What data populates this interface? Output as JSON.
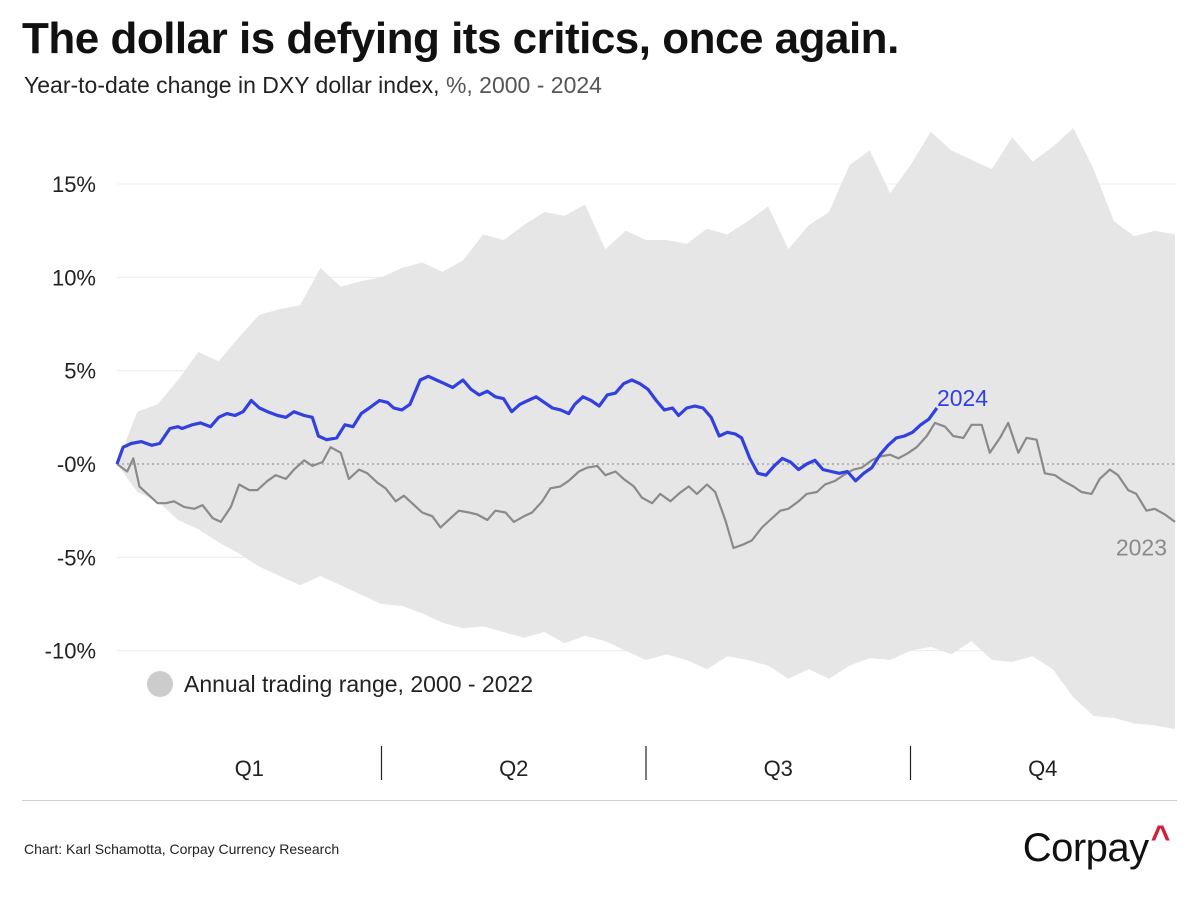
{
  "header": {
    "title": "The dollar is defying its critics, once again.",
    "subtitle_main": "Year-to-date change in DXY dollar index, ",
    "subtitle_unit": "%, 2000 - 2024"
  },
  "footer": {
    "source": "Chart: Karl Schamotta, Corpay Currency Research",
    "brand": "Corpay",
    "brand_mark": "^"
  },
  "colors": {
    "range_fill": "#e6e6e6",
    "series_2024": "#3340e0",
    "series_2023": "#8a8a8a",
    "legend_dot": "#cccccc"
  },
  "chart_data": {
    "type": "line",
    "title": "The dollar is defying its critics, once again.",
    "ylabel": "Year-to-date change in DXY dollar index, %",
    "ylim": [
      -14.2,
      18.5
    ],
    "xlim": [
      0,
      52
    ],
    "x_unit": "week of year",
    "yticks": [
      15,
      10,
      5,
      0,
      -5,
      -10
    ],
    "ytick_labels": [
      "15%",
      "10%",
      "5%",
      "-0%",
      "-5%",
      "-10%"
    ],
    "quarters": [
      "Q1",
      "Q2",
      "Q3",
      "Q4"
    ],
    "legend": {
      "label": "Annual trading range, 2000 - 2022"
    },
    "range": {
      "name": "Annual trading range, 2000 - 2022",
      "x": [
        0,
        1,
        2,
        3,
        4,
        5,
        6,
        7,
        8,
        9,
        10,
        11,
        12,
        13,
        14,
        15,
        16,
        17,
        18,
        19,
        20,
        21,
        22,
        23,
        24,
        25,
        26,
        27,
        28,
        29,
        30,
        31,
        32,
        33,
        34,
        35,
        36,
        37,
        38,
        39,
        40,
        41,
        42,
        43,
        44,
        45,
        46,
        47,
        48,
        49,
        50,
        51,
        52
      ],
      "upper": [
        0,
        2.8,
        3.2,
        4.5,
        6.0,
        5.5,
        6.8,
        8.0,
        8.3,
        8.5,
        10.5,
        9.5,
        9.8,
        10.0,
        10.5,
        10.8,
        10.3,
        10.9,
        12.3,
        12.0,
        12.8,
        13.5,
        13.3,
        13.9,
        11.5,
        12.5,
        12.0,
        12.0,
        11.8,
        12.6,
        12.3,
        13.0,
        13.8,
        11.5,
        12.8,
        13.5,
        16.0,
        16.8,
        14.5,
        16.0,
        17.8,
        16.8,
        16.3,
        15.8,
        17.5,
        16.2,
        17.0,
        18.0,
        15.8,
        13.0,
        12.2,
        12.5,
        12.3
      ],
      "lower": [
        0,
        -1.5,
        -2.0,
        -3.0,
        -3.5,
        -4.2,
        -4.8,
        -5.5,
        -6.0,
        -6.5,
        -6.0,
        -6.5,
        -7.0,
        -7.5,
        -7.6,
        -8.0,
        -8.5,
        -8.8,
        -8.7,
        -9.0,
        -9.3,
        -9.0,
        -9.6,
        -9.2,
        -9.5,
        -10.0,
        -10.5,
        -10.2,
        -10.5,
        -11.0,
        -10.3,
        -10.5,
        -10.8,
        -11.5,
        -11.0,
        -11.5,
        -10.8,
        -10.4,
        -10.5,
        -10.0,
        -9.8,
        -10.2,
        -9.5,
        -10.5,
        -10.6,
        -10.3,
        -11.0,
        -12.5,
        -13.5,
        -13.6,
        -13.9,
        -14.0,
        -14.2
      ]
    },
    "series": [
      {
        "name": "2024",
        "label": "2024",
        "x": [
          0,
          0.3,
          0.7,
          1.2,
          1.7,
          2.1,
          2.6,
          3.0,
          3.2,
          3.7,
          4.1,
          4.6,
          5.0,
          5.4,
          5.8,
          6.2,
          6.6,
          7.0,
          7.4,
          7.9,
          8.3,
          8.7,
          9.2,
          9.6,
          9.9,
          10.3,
          10.8,
          11.2,
          11.6,
          12.0,
          12.4,
          12.9,
          13.3,
          13.6,
          14.0,
          14.4,
          14.9,
          15.3,
          15.7,
          16.1,
          16.5,
          17.0,
          17.4,
          17.8,
          18.2,
          18.6,
          19.0,
          19.4,
          19.8,
          20.2,
          20.6,
          21.0,
          21.4,
          21.8,
          22.2,
          22.5,
          22.9,
          23.3,
          23.7,
          24.1,
          24.5,
          24.9,
          25.3,
          25.7,
          26.1,
          26.5,
          26.9,
          27.3,
          27.6,
          28.0,
          28.4,
          28.8,
          29.2,
          29.6,
          30.0,
          30.4,
          30.7,
          31.1,
          31.5,
          31.9,
          32.3,
          32.7,
          33.1,
          33.5,
          33.9,
          34.3,
          34.7,
          35.1,
          35.5,
          35.9,
          36.3,
          36.7,
          37.1,
          37.5,
          37.9,
          38.3,
          38.7,
          39.1,
          39.5,
          39.9,
          40.3
        ],
        "values": [
          0,
          0.9,
          1.1,
          1.2,
          1.0,
          1.1,
          1.9,
          2.0,
          1.9,
          2.1,
          2.2,
          2.0,
          2.5,
          2.7,
          2.6,
          2.8,
          3.4,
          3.0,
          2.8,
          2.6,
          2.5,
          2.8,
          2.6,
          2.5,
          1.5,
          1.3,
          1.4,
          2.1,
          2.0,
          2.7,
          3.0,
          3.4,
          3.3,
          3.0,
          2.9,
          3.2,
          4.5,
          4.7,
          4.5,
          4.3,
          4.1,
          4.5,
          4.0,
          3.7,
          3.9,
          3.6,
          3.5,
          2.8,
          3.2,
          3.4,
          3.6,
          3.3,
          3.0,
          2.9,
          2.7,
          3.2,
          3.6,
          3.4,
          3.1,
          3.7,
          3.8,
          4.3,
          4.5,
          4.3,
          4.0,
          3.4,
          2.9,
          3.0,
          2.6,
          3.0,
          3.1,
          3.0,
          2.5,
          1.5,
          1.7,
          1.6,
          1.4,
          0.3,
          -0.5,
          -0.6,
          -0.1,
          0.3,
          0.1,
          -0.3,
          0.0,
          0.2,
          -0.3,
          -0.4,
          -0.5,
          -0.4,
          -0.9,
          -0.5,
          -0.2,
          0.5,
          1.0,
          1.4,
          1.5,
          1.7,
          2.1,
          2.4,
          3.0
        ]
      },
      {
        "name": "2023",
        "label": "2023",
        "x": [
          0,
          0.5,
          0.8,
          1.1,
          1.5,
          2.0,
          2.4,
          2.8,
          3.3,
          3.8,
          4.2,
          4.7,
          5.1,
          5.6,
          6.0,
          6.5,
          6.9,
          7.4,
          7.8,
          8.3,
          8.7,
          9.2,
          9.6,
          10.1,
          10.5,
          11.0,
          11.4,
          11.9,
          12.3,
          12.8,
          13.2,
          13.7,
          14.1,
          14.6,
          15.0,
          15.5,
          15.9,
          16.4,
          16.8,
          17.3,
          17.7,
          18.2,
          18.6,
          19.1,
          19.5,
          20.0,
          20.4,
          20.9,
          21.3,
          21.8,
          22.2,
          22.7,
          23.1,
          23.6,
          24.0,
          24.5,
          24.9,
          25.4,
          25.8,
          26.3,
          26.7,
          27.2,
          27.6,
          28.1,
          28.5,
          29.0,
          29.4,
          29.9,
          30.3,
          30.8,
          31.2,
          31.7,
          32.1,
          32.6,
          33.0,
          33.5,
          33.9,
          34.4,
          34.8,
          35.3,
          35.7,
          36.2,
          36.6,
          37.1,
          37.5,
          38.0,
          38.4,
          38.9,
          39.3,
          39.8,
          40.2,
          40.7,
          41.1,
          41.6,
          42.0,
          42.5,
          42.9,
          43.4,
          43.8,
          44.3,
          44.7,
          45.2,
          45.6,
          46.1,
          46.5,
          47.0,
          47.4,
          47.9,
          48.3,
          48.8,
          49.2,
          49.7,
          50.1,
          50.6,
          51.0,
          51.5,
          52.0
        ],
        "values": [
          0,
          -0.4,
          0.3,
          -1.2,
          -1.6,
          -2.1,
          -2.1,
          -2.0,
          -2.3,
          -2.4,
          -2.2,
          -2.9,
          -3.1,
          -2.3,
          -1.1,
          -1.4,
          -1.4,
          -0.9,
          -0.6,
          -0.8,
          -0.3,
          0.2,
          -0.1,
          0.1,
          0.9,
          0.6,
          -0.8,
          -0.3,
          -0.5,
          -1.0,
          -1.3,
          -2.0,
          -1.7,
          -2.2,
          -2.6,
          -2.8,
          -3.4,
          -2.9,
          -2.5,
          -2.6,
          -2.7,
          -3.0,
          -2.5,
          -2.6,
          -3.1,
          -2.8,
          -2.6,
          -2.0,
          -1.3,
          -1.2,
          -0.9,
          -0.4,
          -0.2,
          -0.1,
          -0.6,
          -0.4,
          -0.8,
          -1.2,
          -1.8,
          -2.1,
          -1.6,
          -2.0,
          -1.6,
          -1.2,
          -1.6,
          -1.1,
          -1.5,
          -3.0,
          -4.5,
          -4.3,
          -4.1,
          -3.4,
          -3.0,
          -2.5,
          -2.4,
          -2.0,
          -1.6,
          -1.5,
          -1.1,
          -0.9,
          -0.6,
          -0.3,
          -0.2,
          0.2,
          0.4,
          0.5,
          0.3,
          0.6,
          0.9,
          1.5,
          2.2,
          2.0,
          1.5,
          1.4,
          2.1,
          2.1,
          0.6,
          1.4,
          2.2,
          0.6,
          1.4,
          1.3,
          -0.5,
          -0.6,
          -0.9,
          -1.2,
          -1.5,
          -1.6,
          -0.8,
          -0.3,
          -0.6,
          -1.4,
          -1.6,
          -2.5,
          -2.4,
          -2.7,
          -3.1
        ]
      }
    ]
  }
}
